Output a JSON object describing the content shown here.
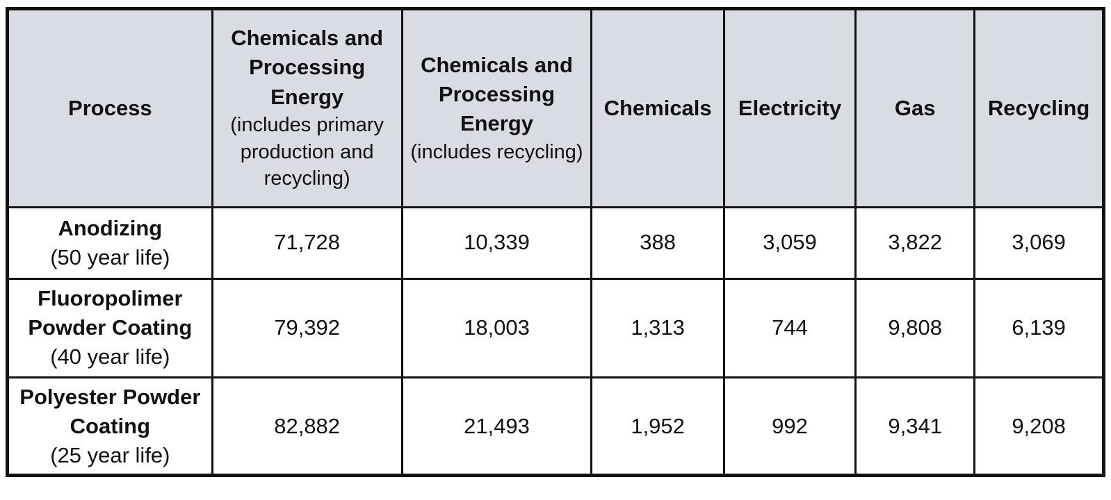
{
  "table": {
    "headers": [
      {
        "main": "Process",
        "sub": ""
      },
      {
        "main": "Chemicals and Processing Energy",
        "sub": "(includes primary production and recycling)"
      },
      {
        "main": "Chemicals and Processing Energy",
        "sub": "(includes recycling)"
      },
      {
        "main": "Chemicals",
        "sub": ""
      },
      {
        "main": "Electricity",
        "sub": ""
      },
      {
        "main": "Gas",
        "sub": ""
      },
      {
        "main": "Recycling",
        "sub": ""
      }
    ],
    "rows": [
      {
        "process": "Anodizing",
        "life": "(50 year life)",
        "values": [
          "71,728",
          "10,339",
          "388",
          "3,059",
          "3,822",
          "3,069"
        ]
      },
      {
        "process": "Fluoropolimer Powder Coating",
        "life": "(40 year life)",
        "values": [
          "79,392",
          "18,003",
          "1,313",
          "744",
          "9,808",
          "6,139"
        ]
      },
      {
        "process": "Polyester Powder Coating",
        "life": "(25 year life)",
        "values": [
          "82,882",
          "21,493",
          "1,952",
          "992",
          "9,341",
          "9,208"
        ]
      }
    ]
  },
  "colors": {
    "header_bg": "#d9dde3",
    "border": "#111111",
    "text": "#111111"
  }
}
